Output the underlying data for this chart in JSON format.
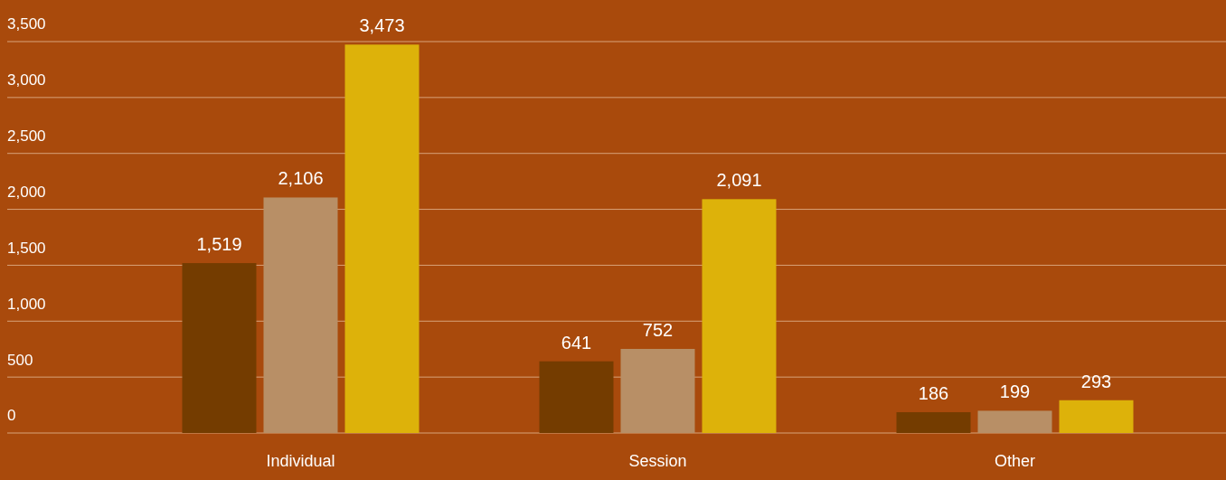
{
  "chart_data": {
    "type": "bar",
    "categories": [
      "Individual",
      "Session",
      "Other"
    ],
    "series": [
      {
        "color": "#743c00",
        "values": [
          1519,
          641,
          186
        ],
        "value_labels": [
          "1,519",
          "641",
          "186"
        ]
      },
      {
        "color": "#b88f66",
        "values": [
          2106,
          752,
          199
        ],
        "value_labels": [
          "2,106",
          "752",
          "199"
        ]
      },
      {
        "color": "#ddb20a",
        "values": [
          3473,
          2091,
          293
        ],
        "value_labels": [
          "3,473",
          "2,091",
          "293"
        ]
      }
    ],
    "ylim": [
      0,
      3500
    ],
    "yticks": [
      {
        "value": 0,
        "label": "0"
      },
      {
        "value": 500,
        "label": "500"
      },
      {
        "value": 1000,
        "label": "1,000"
      },
      {
        "value": 1500,
        "label": "1,500"
      },
      {
        "value": 2000,
        "label": "2,000"
      },
      {
        "value": 2500,
        "label": "2,500"
      },
      {
        "value": 3000,
        "label": "3,000"
      },
      {
        "value": 3500,
        "label": "3,500"
      }
    ],
    "grid": "y"
  }
}
